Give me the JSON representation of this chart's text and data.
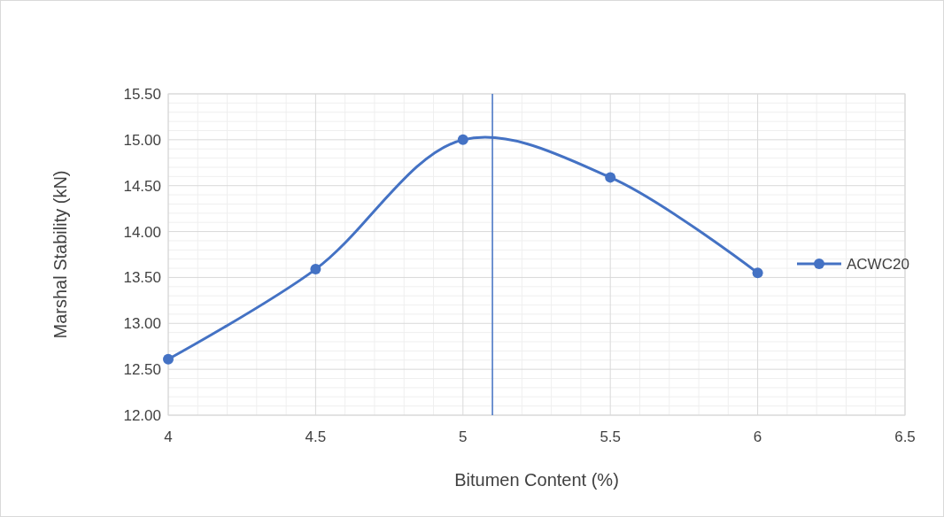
{
  "chart_data": {
    "type": "line",
    "xlabel": "Bitumen Content (%)",
    "ylabel": "Marshal Stability (kN)",
    "x": [
      4,
      4.5,
      5,
      5.5,
      6
    ],
    "series": [
      {
        "name": "ACWC20",
        "color": "#4472c4",
        "values": [
          12.61,
          13.59,
          15.0,
          14.59,
          13.55
        ]
      }
    ],
    "xlim": [
      4,
      6.5
    ],
    "xticks": [
      4,
      4.5,
      5,
      5.5,
      6,
      6.5
    ],
    "ylim": [
      12,
      15.5
    ],
    "yticks": [
      {
        "value": 12,
        "label": "12.00"
      },
      {
        "value": 12.5,
        "label": "12.50"
      },
      {
        "value": 13,
        "label": "13.00"
      },
      {
        "value": 13.5,
        "label": "13.50"
      },
      {
        "value": 14,
        "label": "14.00"
      },
      {
        "value": 14.5,
        "label": "14.50"
      },
      {
        "value": 15,
        "label": "15.00"
      },
      {
        "value": 15.5,
        "label": "15.50"
      }
    ],
    "ref_lines": [
      {
        "axis": "x",
        "value": 5.1,
        "color": "#4472c4"
      }
    ],
    "grid": true,
    "legend": "right",
    "marker": "circle",
    "line_style": "solid"
  }
}
